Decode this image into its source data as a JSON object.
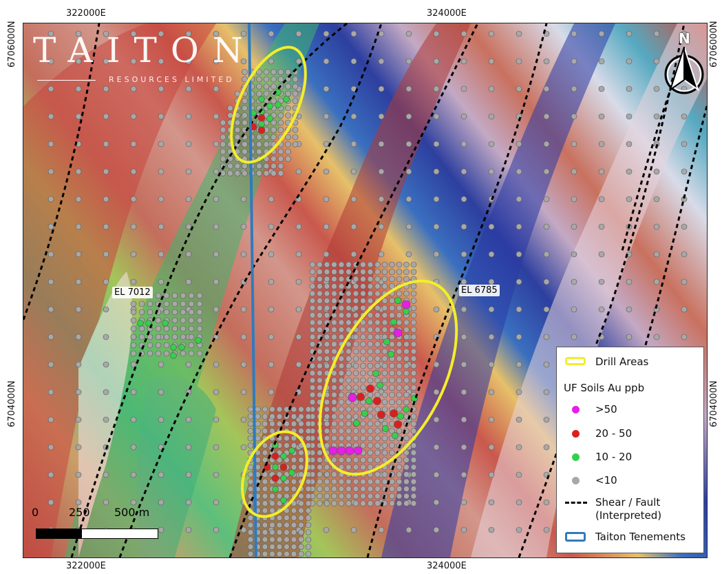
{
  "map": {
    "brand": {
      "name": "TAITON",
      "subtitle": "RESOURCES LIMITED"
    },
    "coords": {
      "top_left_e": "322000E",
      "top_right_e": "324000E",
      "bottom_left_e": "322000E",
      "bottom_right_e": "324000E",
      "left_top_n": "6706000N",
      "left_bottom_n": "6704000N",
      "right_top_n": "6706000N",
      "right_bottom_n": "6704000N"
    },
    "tenement_labels": [
      "EL 7012",
      "EL 6785"
    ],
    "north": "N",
    "scale": {
      "labels": [
        "0",
        "250",
        "500 m"
      ]
    },
    "legend": {
      "drill_areas": "Drill Areas",
      "soils_title": "UF Soils Au ppb",
      "classes": [
        {
          "label": ">50",
          "color": "#e61ee6"
        },
        {
          "label": "20 - 50",
          "color": "#d9201f"
        },
        {
          "label": "10 - 20",
          "color": "#33d14a"
        },
        {
          "label": "<10",
          "color": "#a8a8a8"
        }
      ],
      "fault_line1": "Shear / Fault",
      "fault_line2": "(Interpreted)",
      "tenements": "Taiton Tenements"
    },
    "colors": {
      "drill_area": "#f3ee2a",
      "tenement": "#2e7bbf",
      "fault": "#000000"
    }
  }
}
